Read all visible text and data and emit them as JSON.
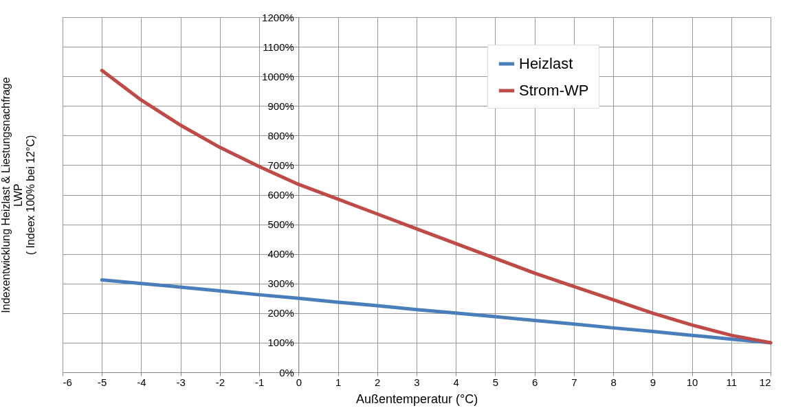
{
  "chart_data": {
    "type": "line",
    "xlabel": "Außentemperatur (°C)",
    "ylabel": "Indexentwicklung Heizlast & Liestungsnachfrage\nLWP\n( Indeex 100% bei 12°C)",
    "x": [
      -5,
      -4,
      -3,
      -2,
      -1,
      0,
      1,
      2,
      3,
      4,
      5,
      6,
      7,
      8,
      9,
      10,
      11,
      12
    ],
    "series": [
      {
        "name": "Heizlast",
        "color": "#4a7ebb",
        "values": [
          312,
          300,
          288,
          275,
          262,
          250,
          237,
          225,
          212,
          200,
          188,
          175,
          163,
          150,
          138,
          125,
          112,
          100
        ]
      },
      {
        "name": "Strom-WP",
        "color": "#be4b48",
        "values": [
          1020,
          920,
          835,
          760,
          695,
          635,
          585,
          535,
          485,
          435,
          385,
          335,
          290,
          245,
          200,
          160,
          125,
          100
        ]
      }
    ],
    "xlim": [
      -6,
      12
    ],
    "xticks": [
      -6,
      -5,
      -4,
      -3,
      -2,
      -1,
      0,
      1,
      2,
      3,
      4,
      5,
      6,
      7,
      8,
      9,
      10,
      11,
      12
    ],
    "ylim": [
      0,
      1200
    ],
    "yticks": [
      {
        "value": 0,
        "label": "0%"
      },
      {
        "value": 100,
        "label": "100%"
      },
      {
        "value": 200,
        "label": "200%"
      },
      {
        "value": 300,
        "label": "300%"
      },
      {
        "value": 400,
        "label": "400%"
      },
      {
        "value": 500,
        "label": "500%"
      },
      {
        "value": 600,
        "label": "600%"
      },
      {
        "value": 700,
        "label": "700%"
      },
      {
        "value": 800,
        "label": "800%"
      },
      {
        "value": 900,
        "label": "900%"
      },
      {
        "value": 1000,
        "label": "1000%"
      },
      {
        "value": 1100,
        "label": "1100%"
      },
      {
        "value": 1200,
        "label": "1200%"
      }
    ],
    "grid": true,
    "legend": "top right",
    "marker": "none",
    "line_style": "solid"
  }
}
